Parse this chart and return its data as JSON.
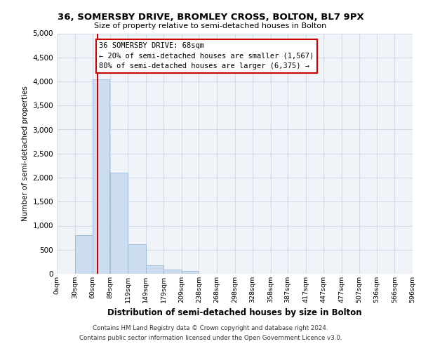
{
  "title1": "36, SOMERSBY DRIVE, BROMLEY CROSS, BOLTON, BL7 9PX",
  "title2": "Size of property relative to semi-detached houses in Bolton",
  "xlabel": "Distribution of semi-detached houses by size in Bolton",
  "ylabel": "Number of semi-detached properties",
  "annotation_line1": "36 SOMERSBY DRIVE: 68sqm",
  "annotation_line2": "← 20% of semi-detached houses are smaller (1,567)",
  "annotation_line3": "80% of semi-detached houses are larger (6,375) →",
  "footer1": "Contains HM Land Registry data © Crown copyright and database right 2024.",
  "footer2": "Contains public sector information licensed under the Open Government Licence v3.0.",
  "bar_color": "#ccddf0",
  "bar_edgecolor": "#9ab8d8",
  "grid_color": "#d0dce8",
  "property_line_color": "#cc0000",
  "annotation_box_edgecolor": "#cc0000",
  "background_color": "#f0f4f8",
  "ylim": [
    0,
    5000
  ],
  "yticks": [
    0,
    500,
    1000,
    1500,
    2000,
    2500,
    3000,
    3500,
    4000,
    4500,
    5000
  ],
  "property_value": 68,
  "bin_edges": [
    0,
    30,
    60,
    89,
    119,
    149,
    179,
    209,
    238,
    268,
    298,
    328,
    358,
    387,
    417,
    447,
    477,
    507,
    536,
    566,
    596
  ],
  "bar_heights": [
    0,
    800,
    4050,
    2100,
    620,
    180,
    90,
    55,
    0,
    0,
    0,
    0,
    0,
    0,
    0,
    0,
    0,
    0,
    0,
    0
  ],
  "tick_labels": [
    "0sqm",
    "30sqm",
    "60sqm",
    "89sqm",
    "119sqm",
    "149sqm",
    "179sqm",
    "209sqm",
    "238sqm",
    "268sqm",
    "298sqm",
    "328sqm",
    "358sqm",
    "387sqm",
    "417sqm",
    "447sqm",
    "477sqm",
    "507sqm",
    "536sqm",
    "566sqm",
    "596sqm"
  ]
}
